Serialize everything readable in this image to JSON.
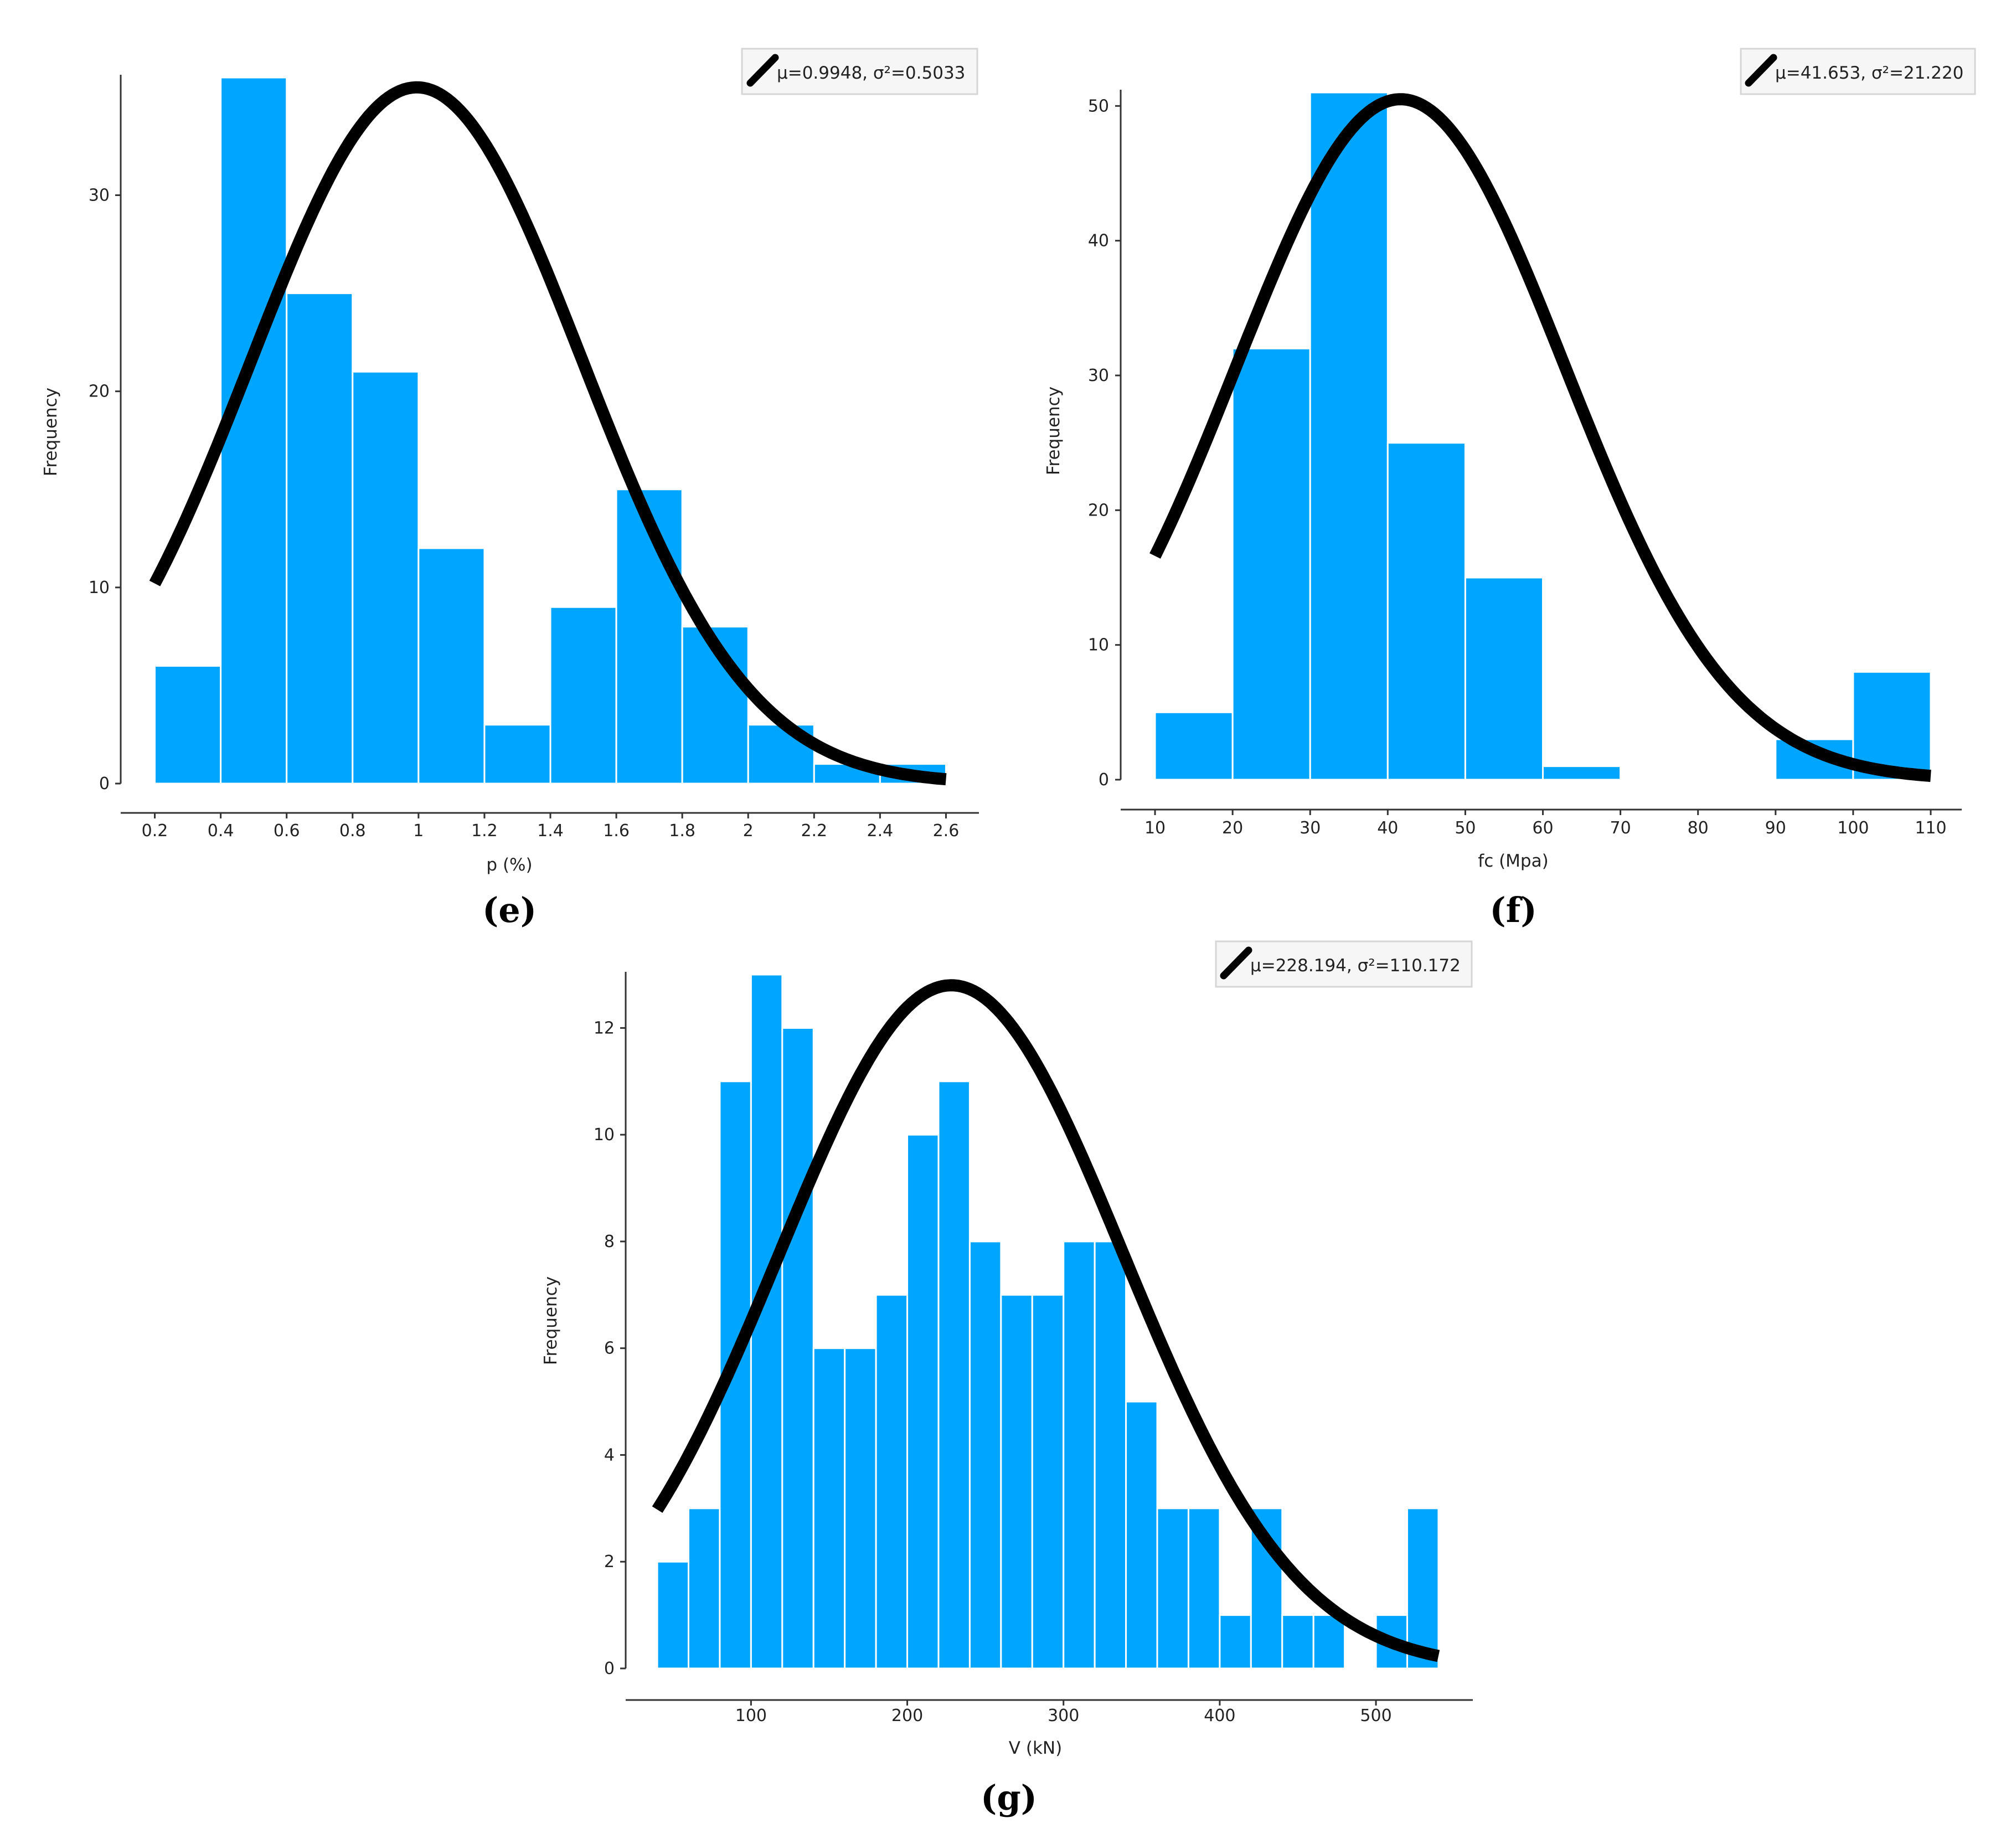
{
  "chart_data": [
    {
      "id": "e",
      "type": "bar",
      "panel_label": "(e)",
      "title": "",
      "xlabel": "p (%)",
      "ylabel": "Frequency",
      "xlim": [
        0.1,
        2.7
      ],
      "ylim": [
        0,
        36
      ],
      "xticks": [
        0.2,
        0.4,
        0.6,
        0.8,
        1,
        1.2,
        1.4,
        1.6,
        1.8,
        2,
        2.2,
        2.4,
        2.6
      ],
      "yticks": [
        0,
        10,
        20,
        30
      ],
      "bin_edges": [
        0.2,
        0.4,
        0.6,
        0.8,
        1.0,
        1.2,
        1.4,
        1.6,
        1.8,
        2.0,
        2.2,
        2.4,
        2.6
      ],
      "values": [
        6,
        36,
        25,
        21,
        12,
        3,
        9,
        15,
        8,
        3,
        1,
        1
      ],
      "fit": {
        "mu": 0.9948,
        "sigma": 0.5033,
        "peak": 35.5,
        "x_range": [
          0.2,
          2.6
        ]
      },
      "legend": "μ=0.9948, σ²=0.5033",
      "bar_color": "#00A5FF",
      "curve_color": "#000000"
    },
    {
      "id": "f",
      "type": "bar",
      "panel_label": "(f)",
      "title": "",
      "xlabel": "fc (Mpa)",
      "ylabel": "Frequency",
      "xlim": [
        6,
        114
      ],
      "ylim": [
        0,
        51
      ],
      "xticks": [
        10,
        20,
        30,
        40,
        50,
        60,
        70,
        80,
        90,
        100,
        110
      ],
      "yticks": [
        0,
        10,
        20,
        30,
        40,
        50
      ],
      "bin_edges": [
        10,
        20,
        30,
        40,
        50,
        60,
        70,
        80,
        90,
        100,
        110
      ],
      "values": [
        5,
        32,
        51,
        25,
        15,
        1,
        0,
        0,
        3,
        8
      ],
      "fit": {
        "mu": 41.653,
        "sigma": 21.22,
        "peak": 50.5,
        "x_range": [
          10,
          110
        ]
      },
      "legend": "μ=41.653, σ²=21.220",
      "bar_color": "#00A5FF",
      "curve_color": "#000000"
    },
    {
      "id": "g",
      "type": "bar",
      "panel_label": "(g)",
      "title": "",
      "xlabel": "V (kN)",
      "ylabel": "Frequency",
      "xlim": [
        18,
        562
      ],
      "ylim": [
        0,
        13
      ],
      "xticks": [
        100,
        200,
        300,
        400,
        500
      ],
      "yticks": [
        0,
        2,
        4,
        6,
        8,
        10,
        12
      ],
      "bin_edges": [
        40,
        60,
        80,
        100,
        120,
        140,
        160,
        180,
        200,
        220,
        240,
        260,
        280,
        300,
        320,
        340,
        360,
        380,
        400,
        420,
        440,
        460,
        480,
        500,
        520,
        540
      ],
      "values": [
        2,
        3,
        11,
        13,
        12,
        6,
        6,
        7,
        10,
        11,
        8,
        7,
        7,
        8,
        8,
        5,
        3,
        3,
        1,
        3,
        1,
        1,
        0,
        1,
        3
      ],
      "fit": {
        "mu": 228.194,
        "sigma": 110.172,
        "peak": 12.8,
        "x_range": [
          40,
          540
        ]
      },
      "legend": "μ=228.194, σ²=110.172",
      "bar_color": "#00A5FF",
      "curve_color": "#000000"
    }
  ]
}
